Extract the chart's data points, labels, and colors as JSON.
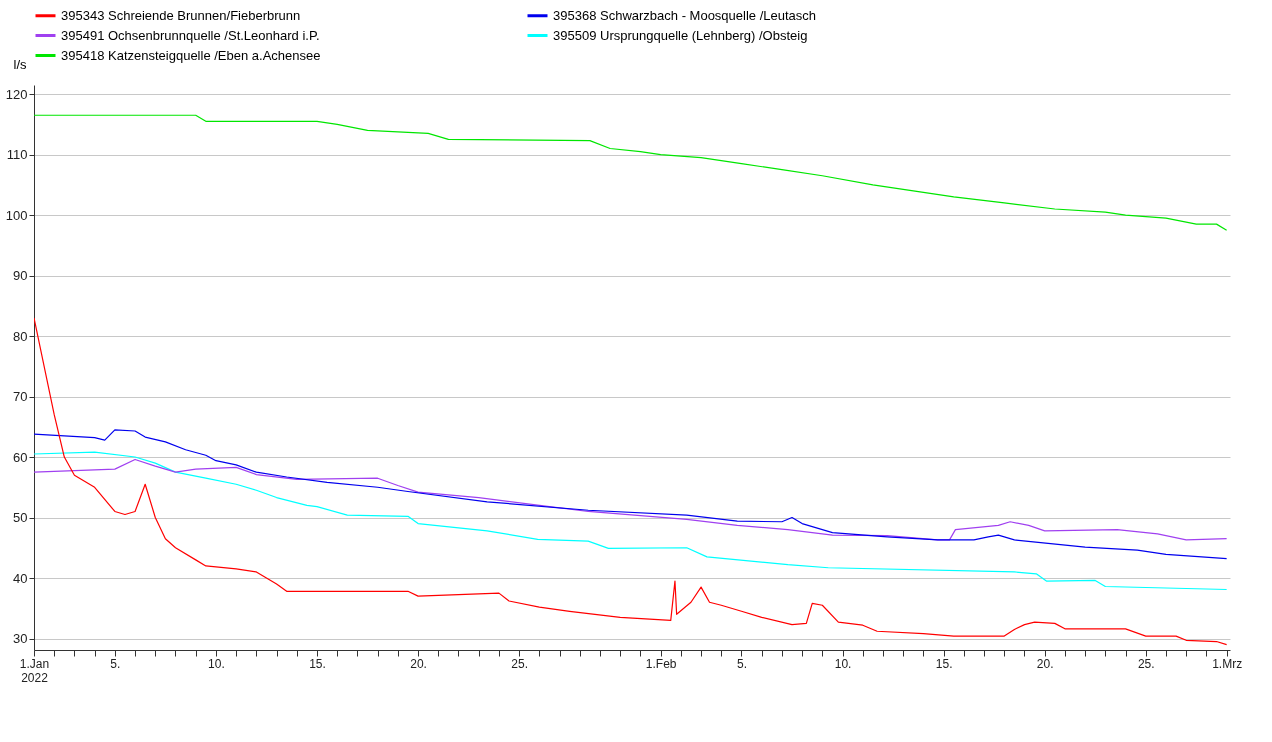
{
  "chart_data": {
    "type": "line",
    "ylabel": "l/s",
    "legend": "top",
    "grid": "y",
    "xlim": [
      "2022-01-01",
      "2022-03-01T04:00"
    ],
    "ylim": [
      28.1,
      121.5
    ],
    "yticks": [
      30,
      40,
      50,
      60,
      70,
      80,
      90,
      100,
      110,
      120
    ],
    "xticks": [
      {
        "value": "2022-01-01",
        "label": "1.Jan\n2022"
      },
      {
        "value": "2022-01-02",
        "label": null
      },
      {
        "value": "2022-01-03",
        "label": null
      },
      {
        "value": "2022-01-04",
        "label": null
      },
      {
        "value": "2022-01-05",
        "label": "5."
      },
      {
        "value": "2022-01-06",
        "label": null
      },
      {
        "value": "2022-01-07",
        "label": null
      },
      {
        "value": "2022-01-08",
        "label": null
      },
      {
        "value": "2022-01-09",
        "label": null
      },
      {
        "value": "2022-01-10",
        "label": "10."
      },
      {
        "value": "2022-01-11",
        "label": null
      },
      {
        "value": "2022-01-12",
        "label": null
      },
      {
        "value": "2022-01-13",
        "label": null
      },
      {
        "value": "2022-01-14",
        "label": null
      },
      {
        "value": "2022-01-15",
        "label": "15."
      },
      {
        "value": "2022-01-16",
        "label": null
      },
      {
        "value": "2022-01-17",
        "label": null
      },
      {
        "value": "2022-01-18",
        "label": null
      },
      {
        "value": "2022-01-19",
        "label": null
      },
      {
        "value": "2022-01-20",
        "label": "20."
      },
      {
        "value": "2022-01-21",
        "label": null
      },
      {
        "value": "2022-01-22",
        "label": null
      },
      {
        "value": "2022-01-23",
        "label": null
      },
      {
        "value": "2022-01-24",
        "label": null
      },
      {
        "value": "2022-01-25",
        "label": "25."
      },
      {
        "value": "2022-01-26",
        "label": null
      },
      {
        "value": "2022-01-27",
        "label": null
      },
      {
        "value": "2022-01-28",
        "label": null
      },
      {
        "value": "2022-01-29",
        "label": null
      },
      {
        "value": "2022-01-30",
        "label": null
      },
      {
        "value": "2022-01-31",
        "label": null
      },
      {
        "value": "2022-02-01",
        "label": "1.Feb"
      },
      {
        "value": "2022-02-02",
        "label": null
      },
      {
        "value": "2022-02-03",
        "label": null
      },
      {
        "value": "2022-02-04",
        "label": null
      },
      {
        "value": "2022-02-05",
        "label": "5."
      },
      {
        "value": "2022-02-06",
        "label": null
      },
      {
        "value": "2022-02-07",
        "label": null
      },
      {
        "value": "2022-02-08",
        "label": null
      },
      {
        "value": "2022-02-09",
        "label": null
      },
      {
        "value": "2022-02-10",
        "label": "10."
      },
      {
        "value": "2022-02-11",
        "label": null
      },
      {
        "value": "2022-02-12",
        "label": null
      },
      {
        "value": "2022-02-13",
        "label": null
      },
      {
        "value": "2022-02-14",
        "label": null
      },
      {
        "value": "2022-02-15",
        "label": "15."
      },
      {
        "value": "2022-02-16",
        "label": null
      },
      {
        "value": "2022-02-17",
        "label": null
      },
      {
        "value": "2022-02-18",
        "label": null
      },
      {
        "value": "2022-02-19",
        "label": null
      },
      {
        "value": "2022-02-20",
        "label": "20."
      },
      {
        "value": "2022-02-21",
        "label": null
      },
      {
        "value": "2022-02-22",
        "label": null
      },
      {
        "value": "2022-02-23",
        "label": null
      },
      {
        "value": "2022-02-24",
        "label": null
      },
      {
        "value": "2022-02-25",
        "label": "25."
      },
      {
        "value": "2022-02-26",
        "label": null
      },
      {
        "value": "2022-02-27",
        "label": null
      },
      {
        "value": "2022-02-28",
        "label": null
      },
      {
        "value": "2022-03-01",
        "label": "1.Mrz"
      }
    ],
    "series": [
      {
        "name": "395343 Schreiende Brunnen/Fieberbrunn",
        "color": "#ff0000",
        "x": [
          "2022-01-01",
          "2022-01-02",
          "2022-01-02T12:00",
          "2022-01-03",
          "2022-01-04",
          "2022-01-05",
          "2022-01-05T12:00",
          "2022-01-06",
          "2022-01-06T12:00",
          "2022-01-07",
          "2022-01-07T12:00",
          "2022-01-08",
          "2022-01-09",
          "2022-01-09T12:00",
          "2022-01-11",
          "2022-01-12",
          "2022-01-12T12:00",
          "2022-01-13",
          "2022-01-13T12:00",
          "2022-01-19T12:00",
          "2022-01-20",
          "2022-01-24",
          "2022-01-24T12:00",
          "2022-01-26",
          "2022-01-27T12:00",
          "2022-01-30",
          "2022-02-01T12:00",
          "2022-02-01T17:00",
          "2022-02-01T19:00",
          "2022-02-02T12:00",
          "2022-02-03",
          "2022-02-03T10:00",
          "2022-02-04",
          "2022-02-05",
          "2022-02-06",
          "2022-02-07T12:00",
          "2022-02-08T05:00",
          "2022-02-08T12:00",
          "2022-02-09",
          "2022-02-09T19:00",
          "2022-02-11",
          "2022-02-11T17:00",
          "2022-02-14",
          "2022-02-15T12:00",
          "2022-02-18",
          "2022-02-18T12:00",
          "2022-02-19",
          "2022-02-19T12:00",
          "2022-02-20T12:00",
          "2022-02-21",
          "2022-02-24",
          "2022-02-25",
          "2022-02-26T12:00",
          "2022-02-27",
          "2022-02-28T12:00",
          "2022-03-01"
        ],
        "values": [
          83,
          67,
          60,
          57,
          55,
          51,
          50.5,
          51,
          55.5,
          50,
          46.5,
          45,
          43,
          42,
          41.5,
          41,
          40,
          39,
          37.8,
          37.8,
          37,
          37.5,
          36.2,
          35.2,
          34.5,
          33.5,
          33,
          39.5,
          34,
          36,
          38.5,
          36,
          35.5,
          34.5,
          33.5,
          32.3,
          32.5,
          35.8,
          35.5,
          32.7,
          32.2,
          31.2,
          30.8,
          30.4,
          30.4,
          31.5,
          32.3,
          32.7,
          32.5,
          31.6,
          31.6,
          30.4,
          30.4,
          29.7,
          29.5,
          29
        ]
      },
      {
        "name": "395368 Schwarzbach - Moosquelle /Leutasch",
        "color": "#0000ee",
        "x": [
          "2022-01-01",
          "2022-01-04",
          "2022-01-04T12:00",
          "2022-01-05",
          "2022-01-06",
          "2022-01-06T12:00",
          "2022-01-07T12:00",
          "2022-01-08T12:00",
          "2022-01-09T12:00",
          "2022-01-10",
          "2022-01-11",
          "2022-01-12",
          "2022-01-13T12:00",
          "2022-01-15T12:00",
          "2022-01-18",
          "2022-01-19T12:00",
          "2022-01-23T10:00",
          "2022-01-28T10:00",
          "2022-02-02T07:00",
          "2022-02-04T19:00",
          "2022-02-07",
          "2022-02-07T12:00",
          "2022-02-08",
          "2022-02-09T12:00",
          "2022-02-12T05:00",
          "2022-02-14T17:00",
          "2022-02-16T12:00",
          "2022-02-17T05:00",
          "2022-02-17T17:00",
          "2022-02-18T12:00",
          "2022-02-22",
          "2022-02-24T14:00",
          "2022-02-26",
          "2022-03-01"
        ],
        "values": [
          63.8,
          63.2,
          62.8,
          64.5,
          64.3,
          63.3,
          62.5,
          61.2,
          60.3,
          59.4,
          58.7,
          57.5,
          56.7,
          55.8,
          55,
          54.3,
          52.6,
          51.2,
          50.4,
          49.4,
          49.3,
          50,
          49,
          47.5,
          46.8,
          46.3,
          46.3,
          46.8,
          47.1,
          46.3,
          45.1,
          44.6,
          43.9,
          43.2
        ]
      },
      {
        "name": "395491 Ochsenbrunnquelle /St.Leonhard i.P.",
        "color": "#a040f0",
        "x": [
          "2022-01-01",
          "2022-01-05",
          "2022-01-06",
          "2022-01-07",
          "2022-01-08",
          "2022-01-09",
          "2022-01-11",
          "2022-01-12",
          "2022-01-14",
          "2022-01-18",
          "2022-01-19",
          "2022-01-20",
          "2022-01-23",
          "2022-01-28T10:00",
          "2022-02-02T07:00",
          "2022-02-04T19:00",
          "2022-02-07T07:00",
          "2022-02-09T12:00",
          "2022-02-12T05:00",
          "2022-02-14T17:00",
          "2022-02-15T07:00",
          "2022-02-15T14:00",
          "2022-02-17T17:00",
          "2022-02-18T07:00",
          "2022-02-19T05:00",
          "2022-02-20",
          "2022-02-23T14:00",
          "2022-02-25T14:00",
          "2022-02-27",
          "2022-03-01"
        ],
        "values": [
          57.5,
          58,
          59.6,
          58.5,
          57.5,
          58,
          58.3,
          57.1,
          56.3,
          56.5,
          55.3,
          54.2,
          53.3,
          51,
          49.7,
          48.7,
          48,
          47.1,
          47,
          46.3,
          46.3,
          48,
          48.7,
          49.3,
          48.7,
          47.8,
          48,
          47.3,
          46.3,
          46.5
        ]
      },
      {
        "name": "395509 Ursprungquelle (Lehnberg) /Obsteig",
        "color": "#00ffff",
        "x": [
          "2022-01-01",
          "2022-01-04",
          "2022-01-06",
          "2022-01-07",
          "2022-01-08",
          "2022-01-09T12:00",
          "2022-01-11",
          "2022-01-12",
          "2022-01-13",
          "2022-01-14T12:00",
          "2022-01-15",
          "2022-01-16T12:00",
          "2022-01-19T12:00",
          "2022-01-20",
          "2022-01-23T10:00",
          "2022-01-25T22:00",
          "2022-01-28T10:00",
          "2022-01-29T10:00",
          "2022-02-02T07:00",
          "2022-02-03T07:00",
          "2022-02-07T07:00",
          "2022-02-09T07:00",
          "2022-02-18T12:00",
          "2022-02-19T14:00",
          "2022-02-20T02:00",
          "2022-02-22T12:00",
          "2022-02-23",
          "2022-03-01"
        ],
        "values": [
          60.5,
          60.8,
          60,
          59,
          57.5,
          56.5,
          55.5,
          54.5,
          53.3,
          52,
          51.8,
          50.4,
          50.2,
          49,
          47.8,
          46.4,
          46.1,
          44.9,
          45,
          43.5,
          42.2,
          41.7,
          41,
          40.7,
          39.5,
          39.6,
          38.6,
          38.1
        ]
      },
      {
        "name": "395418 Katzensteigquelle /Eben a.Achensee",
        "color": "#00e600",
        "x": [
          "2022-01-01",
          "2022-01-09",
          "2022-01-09T12:00",
          "2022-01-15",
          "2022-01-16",
          "2022-01-17T12:00",
          "2022-01-20T12:00",
          "2022-01-21T12:00",
          "2022-01-28T12:00",
          "2022-01-29T12:00",
          "2022-01-31",
          "2022-02-01",
          "2022-02-03",
          "2022-02-05",
          "2022-02-07",
          "2022-02-09",
          "2022-02-11T12:00",
          "2022-02-13T12:00",
          "2022-02-15T12:00",
          "2022-02-18",
          "2022-02-20T12:00",
          "2022-02-23",
          "2022-02-24",
          "2022-02-26",
          "2022-02-27T12:00",
          "2022-02-28T12:00",
          "2022-03-01"
        ],
        "values": [
          116.5,
          116.5,
          115.5,
          115.5,
          115,
          114,
          113.5,
          112.5,
          112.3,
          111,
          110.5,
          110,
          109.5,
          108.5,
          107.5,
          106.5,
          105,
          104,
          103,
          102,
          101,
          100.5,
          100,
          99.5,
          98.5,
          98.5,
          97.5
        ]
      }
    ]
  }
}
